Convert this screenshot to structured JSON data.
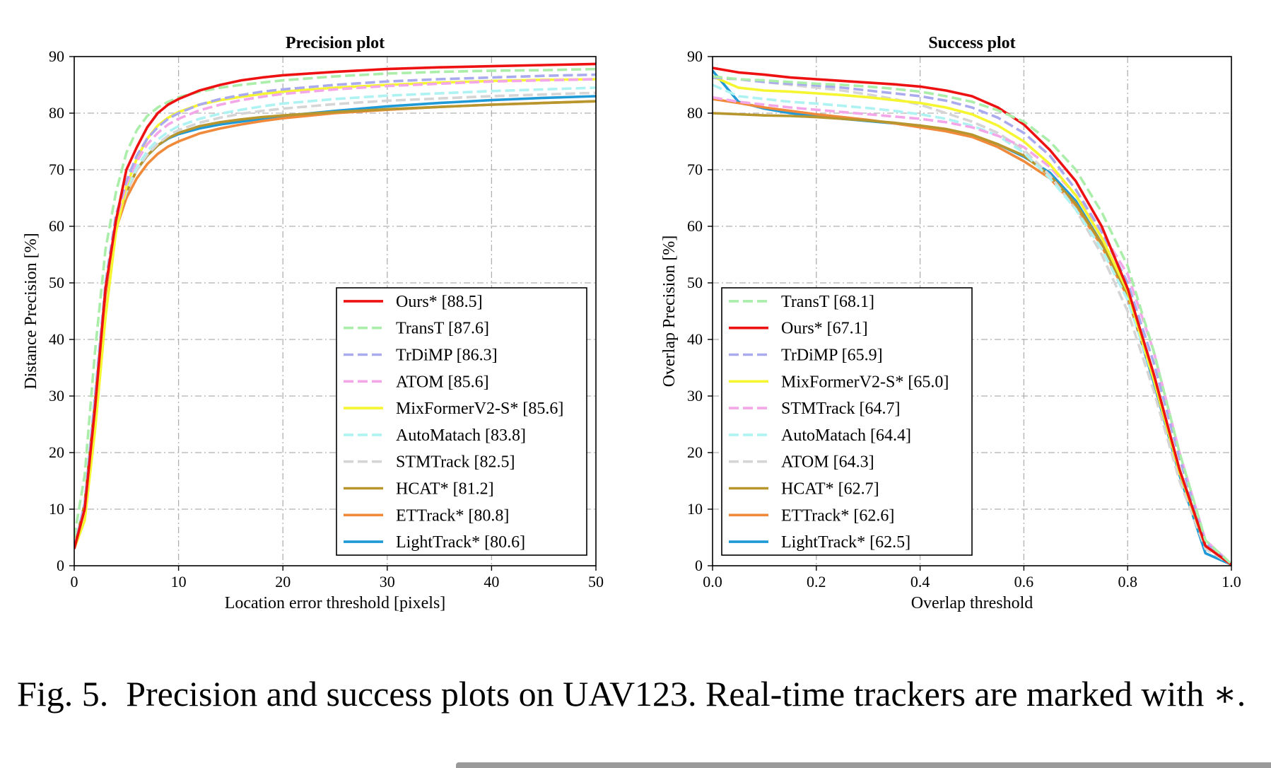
{
  "caption": {
    "label": "Fig. 5.",
    "text": "Precision and success plots on UAV123. Real-time trackers are marked with ∗."
  },
  "chart_data": [
    {
      "type": "line",
      "title": "Precision plot",
      "xlabel": "Location error threshold [pixels]",
      "ylabel": "Distance Precision [%]",
      "xlim": [
        0,
        50
      ],
      "ylim": [
        0,
        90
      ],
      "xticks": [
        0,
        10,
        20,
        30,
        40,
        50
      ],
      "xtick_labels": [
        "0",
        "10",
        "20",
        "30",
        "40",
        "50"
      ],
      "yticks": [
        0,
        10,
        20,
        30,
        40,
        50,
        60,
        70,
        80,
        90
      ],
      "ytick_labels": [
        "0",
        "10",
        "20",
        "30",
        "40",
        "50",
        "60",
        "70",
        "80",
        "90"
      ],
      "grid": true,
      "legend_position": "center-right",
      "x": [
        0,
        1,
        2,
        3,
        4,
        5,
        6,
        7,
        8,
        9,
        10,
        12,
        14,
        16,
        18,
        20,
        25,
        30,
        35,
        40,
        45,
        50
      ],
      "series": [
        {
          "name": "Ours* [88.5]",
          "color": "#ee1111",
          "dash": "solid",
          "values": [
            3,
            10,
            28,
            49,
            61,
            70,
            74,
            77.5,
            80,
            81.5,
            82.5,
            84,
            85,
            85.8,
            86.3,
            86.7,
            87.3,
            87.8,
            88.1,
            88.3,
            88.5,
            88.7
          ]
        },
        {
          "name": "TransT [87.6]",
          "color": "#aaeeaa",
          "dash": "dashed",
          "values": [
            5,
            16,
            38,
            56,
            66,
            73,
            77,
            79.5,
            81,
            82,
            82.8,
            83.8,
            84.5,
            85,
            85.4,
            85.8,
            86.5,
            87,
            87.3,
            87.5,
            87.6,
            87.8
          ]
        },
        {
          "name": "TrDiMP [86.3]",
          "color": "#aaaaee",
          "dash": "dashed",
          "values": [
            3,
            11,
            30,
            50,
            62,
            68,
            72.5,
            75.5,
            77.5,
            79,
            80,
            81.5,
            82.5,
            83.2,
            83.8,
            84.2,
            85,
            85.6,
            86,
            86.3,
            86.6,
            86.8
          ]
        },
        {
          "name": "ATOM [85.6]",
          "color": "#f3a6e8",
          "dash": "dashed",
          "values": [
            3,
            11,
            29,
            49,
            61,
            67.5,
            71.5,
            74.5,
            76.5,
            78,
            79,
            80.5,
            81.5,
            82.3,
            82.9,
            83.4,
            84.2,
            84.8,
            85.2,
            85.6,
            85.8,
            86
          ]
        },
        {
          "name": "MixFormerV2-S* [85.6]",
          "color": "#f5f531",
          "dash": "solid",
          "values": [
            3,
            8,
            24,
            44,
            59,
            67,
            72,
            75.5,
            77.8,
            79.2,
            80.2,
            81.5,
            82.3,
            82.9,
            83.4,
            83.8,
            84.5,
            85,
            85.4,
            85.7,
            85.9,
            86
          ]
        },
        {
          "name": "AutoMatach [83.8]",
          "color": "#aef2f2",
          "dash": "dashed",
          "values": [
            3,
            11,
            29,
            49,
            60.5,
            66.5,
            70.5,
            73.3,
            75.3,
            76.7,
            77.7,
            79,
            79.9,
            80.6,
            81.2,
            81.7,
            82.5,
            83.1,
            83.5,
            83.9,
            84.2,
            84.5
          ]
        },
        {
          "name": "STMTrack [82.5]",
          "color": "#d5d5d5",
          "dash": "dashed",
          "values": [
            3,
            11,
            29,
            49,
            60.5,
            66,
            70,
            72.7,
            74.6,
            76,
            77,
            78.3,
            79.2,
            79.9,
            80.4,
            80.8,
            81.6,
            82.2,
            82.6,
            83,
            83.3,
            83.6
          ]
        },
        {
          "name": "HCAT* [81.2]",
          "color": "#b8962e",
          "dash": "solid",
          "values": [
            3,
            11,
            29,
            49,
            60.5,
            66,
            70,
            72.5,
            74.3,
            75.6,
            76.5,
            77.7,
            78.4,
            78.9,
            79.3,
            79.6,
            80.2,
            80.7,
            81.1,
            81.5,
            81.8,
            82.1
          ]
        },
        {
          "name": "ETTrack* [80.8]",
          "color": "#f08a3a",
          "dash": "solid",
          "values": [
            3,
            11,
            29,
            48,
            59.5,
            65,
            68.5,
            71,
            72.8,
            74.1,
            75,
            76.4,
            77.3,
            78,
            78.6,
            79.1,
            80,
            80.6,
            81.1,
            81.5,
            81.8,
            82.1
          ]
        },
        {
          "name": "LightTrack* [80.6]",
          "color": "#1f9ad6",
          "dash": "solid",
          "values": [
            3,
            11,
            29,
            49,
            60.5,
            66,
            70,
            72.5,
            74.3,
            75.5,
            76.3,
            77.3,
            78,
            78.5,
            79,
            79.5,
            80.4,
            81.2,
            81.8,
            82.3,
            82.7,
            83
          ]
        }
      ]
    },
    {
      "type": "line",
      "title": "Success plot",
      "xlabel": "Overlap threshold",
      "ylabel": "Overlap Precision [%]",
      "xlim": [
        0,
        1
      ],
      "ylim": [
        0,
        90
      ],
      "xticks": [
        0,
        0.2,
        0.4,
        0.6,
        0.8,
        1.0
      ],
      "xtick_labels": [
        "0.0",
        "0.2",
        "0.4",
        "0.6",
        "0.8",
        "1.0"
      ],
      "yticks": [
        0,
        10,
        20,
        30,
        40,
        50,
        60,
        70,
        80,
        90
      ],
      "ytick_labels": [
        "0",
        "10",
        "20",
        "30",
        "40",
        "50",
        "60",
        "70",
        "80",
        "90"
      ],
      "grid": true,
      "legend_position": "lower-left",
      "x": [
        0,
        0.05,
        0.1,
        0.15,
        0.2,
        0.25,
        0.3,
        0.35,
        0.4,
        0.45,
        0.5,
        0.55,
        0.6,
        0.65,
        0.7,
        0.75,
        0.8,
        0.85,
        0.9,
        0.95,
        1.0
      ],
      "series": [
        {
          "name": "TransT [68.1]",
          "color": "#aaeeaa",
          "dash": "dashed",
          "values": [
            86.5,
            86,
            85.8,
            85.5,
            85.2,
            85,
            84.7,
            84.3,
            83.8,
            83,
            82,
            80.5,
            78.5,
            75,
            70,
            62.5,
            53,
            38,
            20,
            4.5,
            0.3
          ]
        },
        {
          "name": "Ours* [67.1]",
          "color": "#ee1111",
          "dash": "solid",
          "values": [
            88,
            87.2,
            86.8,
            86.3,
            86,
            85.7,
            85.4,
            85.1,
            84.7,
            84,
            83,
            81,
            78,
            73.5,
            68,
            60,
            49,
            34,
            17,
            3.5,
            0.2
          ]
        },
        {
          "name": "TrDiMP [65.9]",
          "color": "#aaaaee",
          "dash": "dashed",
          "values": [
            86.3,
            86,
            85.5,
            85.2,
            84.9,
            84.5,
            84,
            83.5,
            83,
            82.2,
            81,
            79.2,
            76.5,
            72.5,
            66.5,
            59,
            50,
            36,
            19,
            4,
            0.3
          ]
        },
        {
          "name": "MixFormerV2-S* [65.0]",
          "color": "#f5f531",
          "dash": "solid",
          "values": [
            86.5,
            84.5,
            84,
            83.8,
            83.5,
            83.2,
            82.8,
            82.3,
            81.8,
            81,
            79.8,
            77.8,
            75,
            71,
            65.5,
            58,
            48.5,
            33,
            16.5,
            3.5,
            0.2
          ]
        },
        {
          "name": "STMTrack [64.7]",
          "color": "#f3a6e8",
          "dash": "dashed",
          "values": [
            82.8,
            82,
            81.5,
            81,
            80.6,
            80.2,
            79.8,
            79.4,
            79,
            78.4,
            77.5,
            76,
            74,
            70.5,
            65.5,
            59,
            51.5,
            38,
            20,
            4.5,
            0.3
          ]
        },
        {
          "name": "AutoMatach [64.4]",
          "color": "#aef2f2",
          "dash": "dashed",
          "values": [
            85,
            83,
            82.5,
            82,
            81.7,
            81.3,
            80.9,
            80.4,
            79.8,
            79,
            77.8,
            76,
            73,
            68.5,
            63,
            56,
            47,
            33,
            17,
            3.5,
            0.2
          ]
        },
        {
          "name": "ATOM [64.3]",
          "color": "#d5d5d5",
          "dash": "dashed",
          "values": [
            86.2,
            86,
            85.5,
            85,
            84.5,
            84,
            83.3,
            82.5,
            81.5,
            80,
            78.5,
            76.5,
            73.5,
            69,
            63,
            55,
            45,
            31,
            15,
            3,
            0.2
          ]
        },
        {
          "name": "HCAT* [62.7]",
          "color": "#b8962e",
          "dash": "solid",
          "values": [
            80,
            79.8,
            79.6,
            79.5,
            79.3,
            79,
            78.7,
            78.3,
            77.8,
            77.2,
            76.2,
            74.5,
            72.5,
            69,
            64,
            57,
            48,
            33.5,
            17,
            3.5,
            0.2
          ]
        },
        {
          "name": "ETTrack* [62.6]",
          "color": "#f08a3a",
          "dash": "solid",
          "values": [
            82.5,
            81.8,
            81,
            80.4,
            79.8,
            79.3,
            78.8,
            78.2,
            77.5,
            76.8,
            75.8,
            74,
            71.5,
            68.5,
            63.5,
            56.5,
            47.5,
            33,
            16.5,
            3.5,
            0.2
          ]
        },
        {
          "name": "LightTrack* [62.5]",
          "color": "#1f9ad6",
          "dash": "solid",
          "values": [
            87.5,
            82,
            80.8,
            80,
            79.5,
            79,
            78.6,
            78.2,
            77.6,
            77,
            76,
            74.5,
            72.3,
            69.5,
            64.5,
            57,
            47.5,
            32.5,
            16,
            2.2,
            0.2
          ]
        }
      ]
    }
  ]
}
